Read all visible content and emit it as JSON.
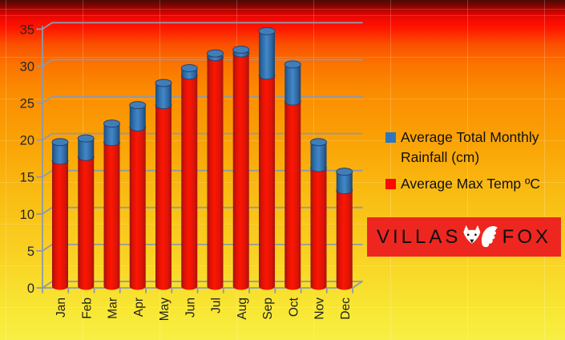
{
  "chart_data": {
    "type": "bar",
    "subtype": "3d-cylinder-stacked",
    "title": "",
    "xlabel": "",
    "ylabel": "",
    "categories": [
      "Jan",
      "Feb",
      "Mar",
      "Apr",
      "May",
      "Jun",
      "Jul",
      "Aug",
      "Sep",
      "Oct",
      "Nov",
      "Dec"
    ],
    "series": [
      {
        "name": "Average Max Temp ºC",
        "stack_order": "bottom",
        "color": "#fb0a00",
        "values": [
          17,
          17.5,
          19.5,
          21.5,
          24.5,
          28.5,
          31,
          31.5,
          28.5,
          25,
          16,
          13
        ]
      },
      {
        "name": "Average Total Monthly Rainfall (cm)",
        "stack_order": "top",
        "color": "#2e76bf",
        "values": [
          2.5,
          2.5,
          2.5,
          3,
          3,
          1,
          0.5,
          0.5,
          6,
          5,
          3.5,
          2.5
        ]
      }
    ],
    "stack_totals": [
      19.5,
      20,
      22,
      24.5,
      27.5,
      29.5,
      31.5,
      32,
      34.5,
      30,
      19.5,
      15.5
    ],
    "ylim": [
      0,
      35
    ],
    "yticks": [
      0,
      5,
      10,
      15,
      20,
      25,
      30,
      35
    ],
    "grid": true,
    "legend_position": "center-right"
  },
  "legend": {
    "items": [
      {
        "label": "Average Total Monthly Rainfall (cm)",
        "color": "#2e76bf"
      },
      {
        "label": "Average Max Temp ºC",
        "color": "#fb0a00"
      }
    ]
  },
  "logo": {
    "left_text": "VILLAS",
    "right_text": "FOX",
    "icon": "fox-icon",
    "bg_color": "#ee2620"
  },
  "colors": {
    "axis_line": "#8f99a8",
    "axis_label": "#262626",
    "bar_red": "#fb0a00",
    "bar_blue": "#2e76bf",
    "background_top": "#4a0a06",
    "background_bottom": "#f7ef44"
  }
}
